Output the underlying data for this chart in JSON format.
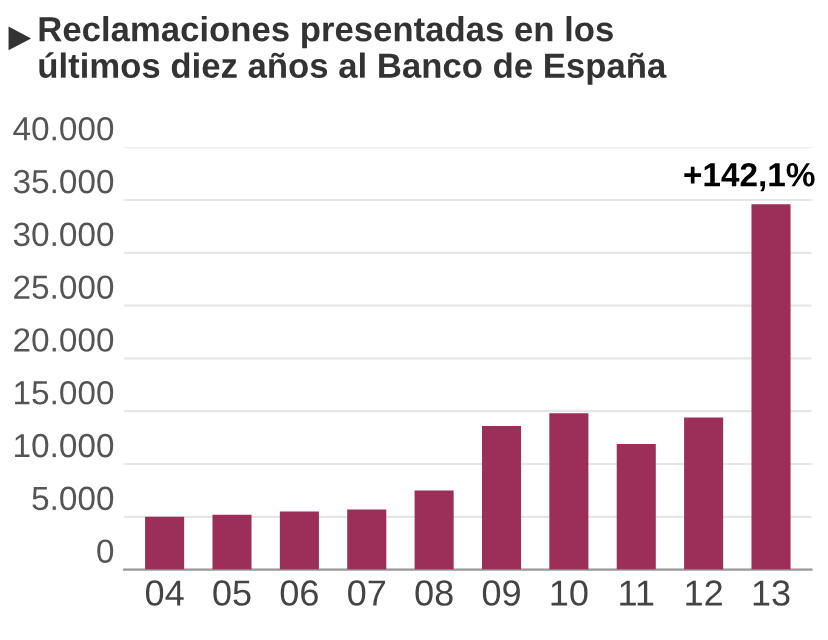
{
  "chart_data": {
    "type": "bar",
    "title": "Reclamaciones presentadas en los\núltimos diez años al Banco de España",
    "categories": [
      "04",
      "05",
      "06",
      "07",
      "08",
      "09",
      "10",
      "11",
      "12",
      "13"
    ],
    "values": [
      5000,
      5200,
      5500,
      5700,
      7500,
      13600,
      14800,
      11900,
      14400,
      34600
    ],
    "color": "#9b2f5a",
    "ylim": [
      0,
      40000
    ],
    "yticks": [
      {
        "value": 0,
        "label": "0"
      },
      {
        "value": 5000,
        "label": "5.000"
      },
      {
        "value": 10000,
        "label": "10.000"
      },
      {
        "value": 15000,
        "label": "15.000"
      },
      {
        "value": 20000,
        "label": "20.000"
      },
      {
        "value": 25000,
        "label": "25.000"
      },
      {
        "value": 30000,
        "label": "30.000"
      },
      {
        "value": 35000,
        "label": "35.000"
      },
      {
        "value": 40000,
        "label": "40.000"
      }
    ],
    "grid": "y",
    "annotations": [
      {
        "text": "+142,1%",
        "x": "13",
        "y": 34600
      }
    ]
  }
}
